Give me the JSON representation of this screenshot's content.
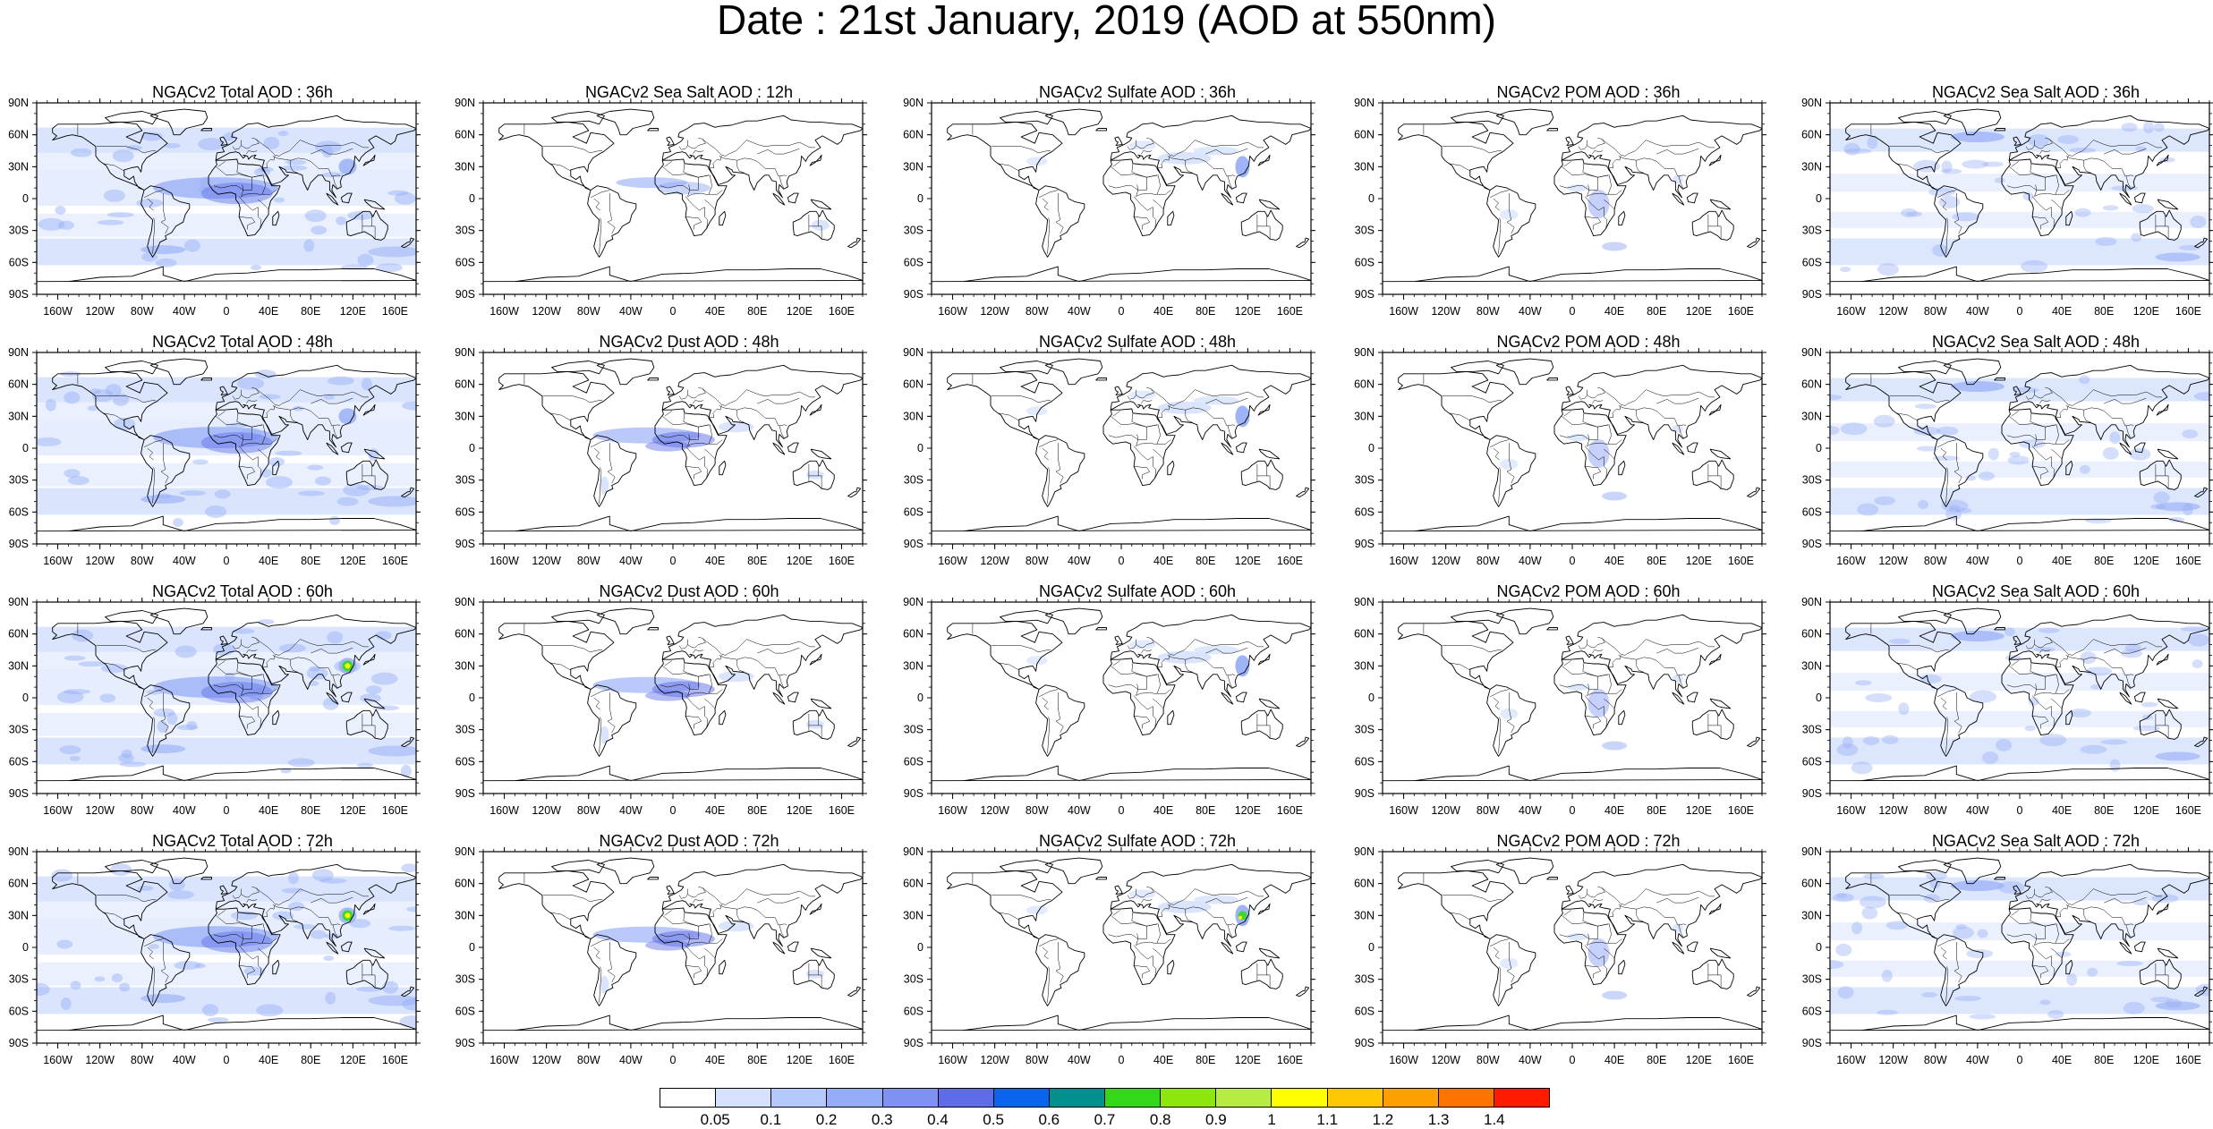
{
  "title": "Date : 21st January, 2019 (AOD at 550nm)",
  "rows": [
    [
      "NGACv2 Total AOD : 36h",
      "NGACv2 Sea Salt  AOD : 12h",
      "NGACv2 Sulfate AOD : 36h",
      "NGACv2 POM AOD : 36h",
      "NGACv2 Sea Salt  AOD : 36h"
    ],
    [
      "NGACv2 Total AOD : 48h",
      "NGACv2 Dust AOD : 48h",
      "NGACv2 Sulfate AOD : 48h",
      "NGACv2 POM AOD : 48h",
      "NGACv2 Sea Salt  AOD : 48h"
    ],
    [
      "NGACv2 Total AOD : 60h",
      "NGACv2 Dust AOD : 60h",
      "NGACv2 Sulfate AOD : 60h",
      "NGACv2 POM AOD : 60h",
      "NGACv2 Sea Salt  AOD : 60h"
    ],
    [
      "NGACv2 Total AOD : 72h",
      "NGACv2 Dust AOD : 72h",
      "NGACv2 Sulfate AOD : 72h",
      "NGACv2 POM AOD : 72h",
      "NGACv2 Sea Salt  AOD : 72h"
    ]
  ],
  "lat_ticks": [
    "90N",
    "60N",
    "30N",
    "0",
    "30S",
    "60S",
    "90S"
  ],
  "lon_ticks": [
    "160W",
    "120W",
    "80W",
    "40W",
    "0",
    "40E",
    "80E",
    "120E",
    "160E"
  ],
  "lon_tick_values": [
    -160,
    -120,
    -80,
    -40,
    0,
    40,
    80,
    120,
    160
  ],
  "colorbar": {
    "colors": [
      "#ffffff",
      "#d6e2fd",
      "#b4c8fb",
      "#95acf6",
      "#7f92f0",
      "#5e6de7",
      "#0c63ee",
      "#00908f",
      "#33d81b",
      "#8de60c",
      "#b7ec44",
      "#ffff00",
      "#ffc800",
      "#ff9f00",
      "#ff7300",
      "#ff1a00"
    ],
    "labels": [
      "0.05",
      "0.1",
      "0.2",
      "0.3",
      "0.4",
      "0.5",
      "0.6",
      "0.7",
      "0.8",
      "0.9",
      "1",
      "1.1",
      "1.2",
      "1.3",
      "1.4"
    ]
  },
  "colors": {
    "land_outline": "#000000",
    "light_aod": "#d6e2fd",
    "mid_aod": "#95acf6",
    "high_aod": "#5e6de7"
  }
}
